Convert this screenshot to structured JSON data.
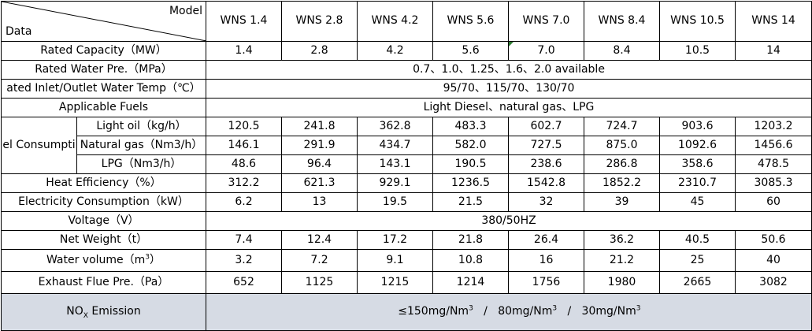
{
  "header": {
    "model_label": "Model",
    "data_label": "Data",
    "models": [
      "WNS 1.4",
      "WNS 2.8",
      "WNS 4.2",
      "WNS 5.6",
      "WNS 7.0",
      "WNS 8.4",
      "WNS 10.5",
      "WNS 14"
    ]
  },
  "rated_capacity": {
    "label": "Rated Capacity（MW）",
    "values": [
      "1.4",
      "2.8",
      "4.2",
      "5.6",
      "7.0",
      "8.4",
      "10.5",
      "14"
    ]
  },
  "water_pressure": {
    "label": "Rated Water Pre.（MPa）",
    "value": "0.7、1.0、1.25、1.6、2.0 available"
  },
  "water_temp": {
    "label": "ated Inlet/Outlet Water Temp（℃）",
    "value": "95/70、115/70、130/70"
  },
  "fuels": {
    "label": "Applicable Fuels",
    "value": "Light Diesel、natural gas、LPG"
  },
  "fuel_consumption": {
    "group_label": "el Consumpti",
    "rows": [
      {
        "label": "Light oil（kg/h）",
        "values": [
          "120.5",
          "241.8",
          "362.8",
          "483.3",
          "602.7",
          "724.7",
          "903.6",
          "1203.2"
        ]
      },
      {
        "label": "Natural gas（Nm3/h）",
        "values": [
          "146.1",
          "291.9",
          "434.7",
          "582.0",
          "727.5",
          "875.0",
          "1092.6",
          "1456.6"
        ]
      },
      {
        "label": "LPG（Nm3/h）",
        "values": [
          "48.6",
          "96.4",
          "143.1",
          "190.5",
          "238.6",
          "286.8",
          "358.6",
          "478.5"
        ]
      }
    ]
  },
  "heat_efficiency": {
    "label": "Heat Efficiency（%）",
    "values": [
      "312.2",
      "621.3",
      "929.1",
      "1236.5",
      "1542.8",
      "1852.2",
      "2310.7",
      "3085.3"
    ]
  },
  "electricity": {
    "label": "Electricity Consumption（kW）",
    "values": [
      "6.2",
      "13",
      "19.5",
      "21.5",
      "32",
      "39",
      "45",
      "60"
    ]
  },
  "voltage": {
    "label": "Voltage（V）",
    "value": "380/50HZ"
  },
  "net_weight": {
    "label": "Net Weight（t）",
    "values": [
      "7.4",
      "12.4",
      "17.2",
      "21.8",
      "26.4",
      "36.2",
      "40.5",
      "50.6"
    ]
  },
  "water_volume": {
    "label_prefix": "Water volume（m",
    "label_sup": "3",
    "label_suffix": "）",
    "values": [
      "3.2",
      "7.2",
      "9.1",
      "10.8",
      "16",
      "21.2",
      "25",
      "40"
    ]
  },
  "exhaust": {
    "label": "Exhaust Flue Pre.（Pa）",
    "values": [
      "652",
      "1125",
      "1215",
      "1214",
      "1756",
      "1980",
      "2665",
      "3082"
    ]
  },
  "nox": {
    "label_prefix": "NO",
    "label_sub": "X",
    "label_suffix": " Emission",
    "parts": [
      {
        "text": "≤150mg/Nm",
        "sup": "3"
      },
      {
        "text": "   /   80mg/Nm",
        "sup": "3"
      },
      {
        "text": "   /   30mg/Nm",
        "sup": "3"
      }
    ]
  },
  "colors": {
    "nox_row_bg": "#d6dbe4",
    "cell_marker": "#2e7d32"
  }
}
